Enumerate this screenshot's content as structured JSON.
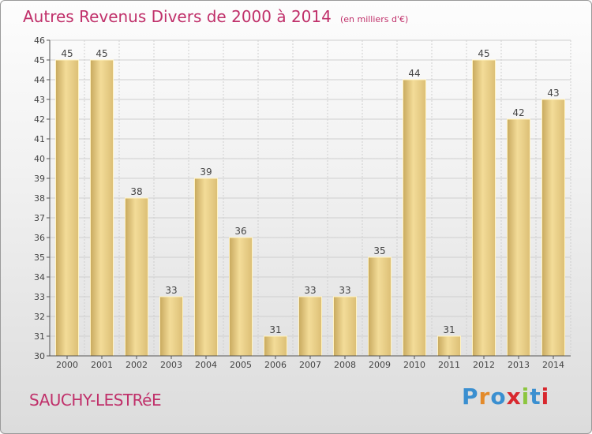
{
  "title": "Autres Revenus Divers de 2000 à 2014",
  "subtitle": "(en milliers d'€)",
  "town": "SAUCHY-LESTRéE",
  "logo": {
    "text": "Proxiti",
    "letter_colors": [
      "#3a8fd0",
      "#e38a2a",
      "#3a8fd0",
      "#d8282e",
      "#8cc63f",
      "#3a8fd0",
      "#d8282e"
    ]
  },
  "colors": {
    "title": "#c0306a",
    "bar_light": "#f7e3a0",
    "bar_dark": "#c8a95e",
    "grid": "#cfcfcf",
    "axis": "#555555"
  },
  "chart_data": {
    "type": "bar",
    "title": "Autres Revenus Divers de 2000 à 2014",
    "subtitle": "(en milliers d'€)",
    "categories": [
      "2000",
      "2001",
      "2002",
      "2003",
      "2004",
      "2005",
      "2006",
      "2007",
      "2008",
      "2009",
      "2010",
      "2011",
      "2012",
      "2013",
      "2014"
    ],
    "values": [
      45,
      45,
      38,
      33,
      39,
      36,
      31,
      33,
      33,
      35,
      44,
      31,
      45,
      42,
      43
    ],
    "ylim": [
      30,
      46
    ],
    "yticks": [
      30,
      31,
      32,
      33,
      34,
      35,
      36,
      37,
      38,
      39,
      40,
      41,
      42,
      43,
      44,
      45,
      46
    ],
    "grid": true,
    "data_labels": true
  }
}
